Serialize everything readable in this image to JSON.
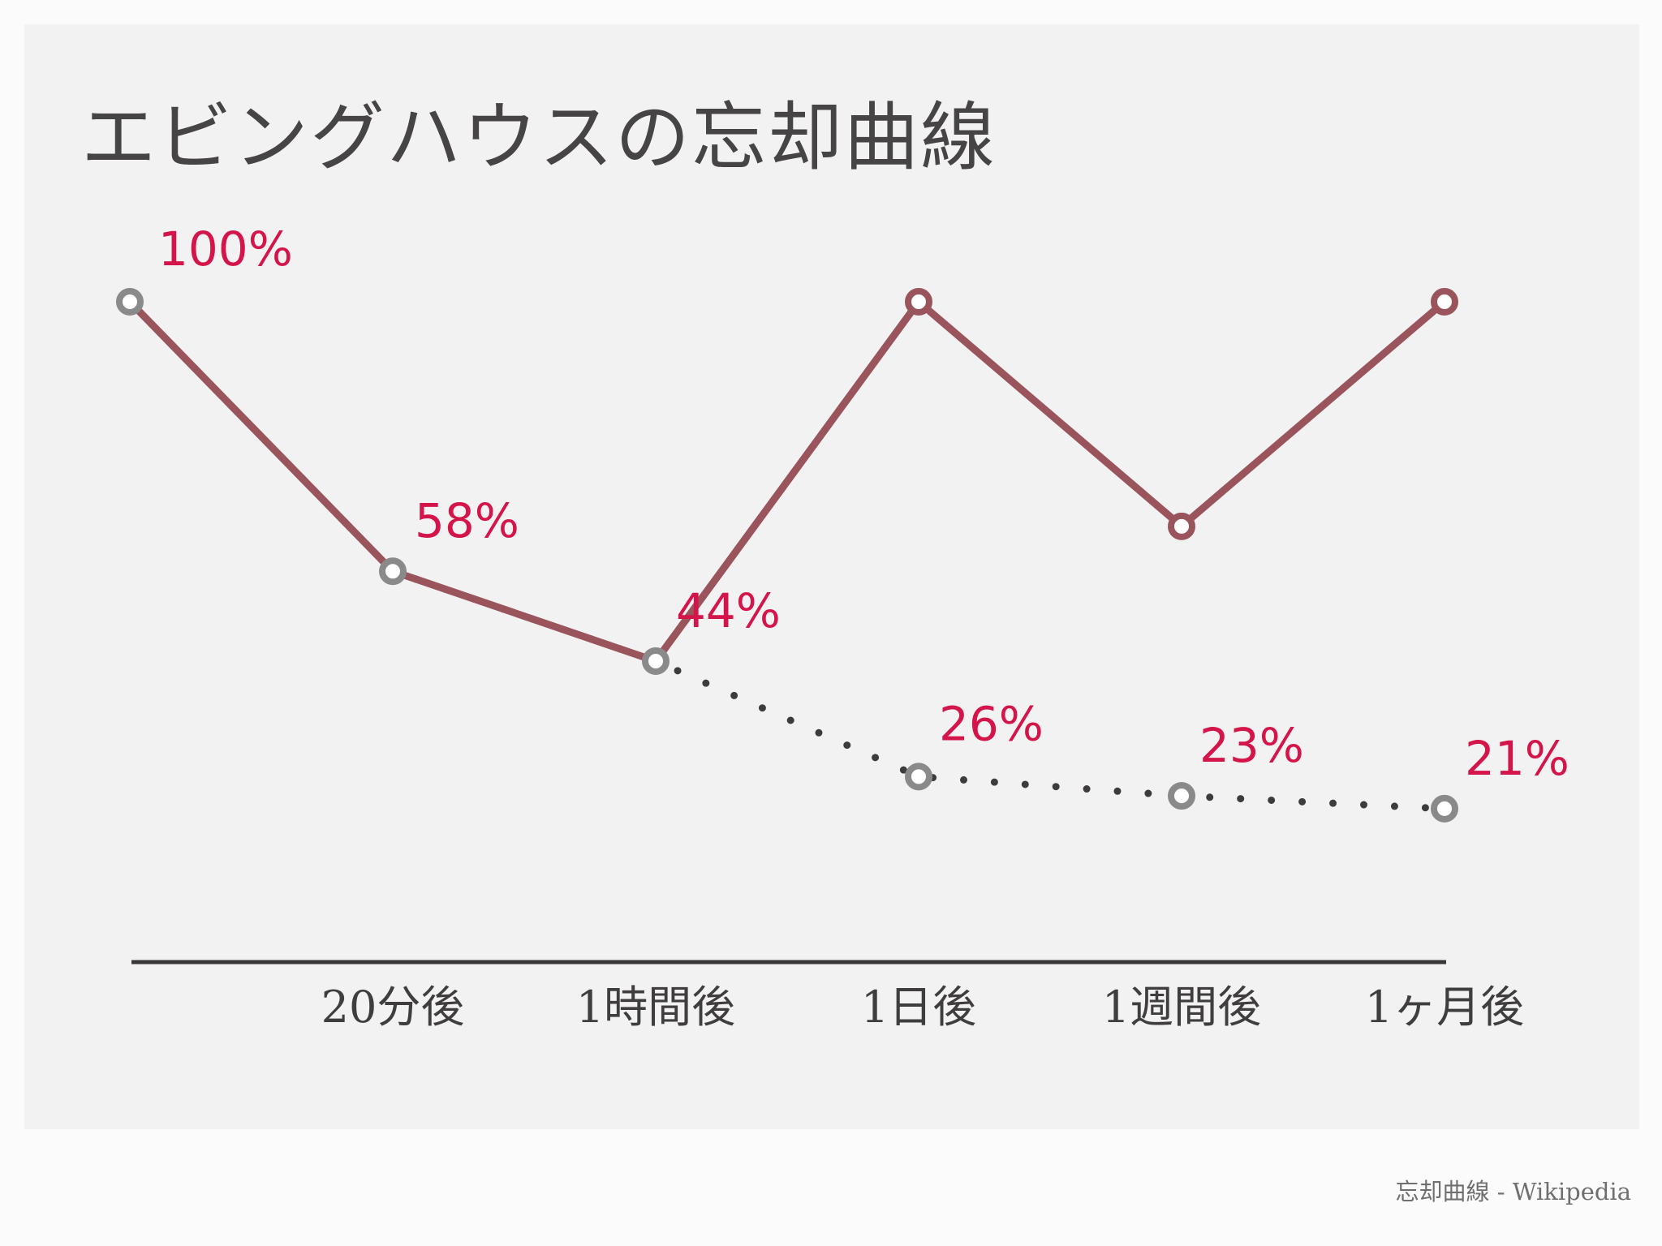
{
  "chart_data": {
    "type": "line",
    "title": "エビングハウスの忘却曲線",
    "xlabel": "",
    "ylabel": "",
    "categories": [
      "",
      "20分後",
      "1時間後",
      "1日後",
      "1週間後",
      "1ヶ月後"
    ],
    "ylim": [
      0,
      100
    ],
    "grid": false,
    "series": [
      {
        "values": [
          100,
          58,
          44,
          100,
          65,
          100
        ],
        "color": "#9a555c",
        "style": "solid",
        "marker": "hollow-circle"
      },
      {
        "values": [
          100,
          58,
          44,
          26,
          23,
          21
        ],
        "color": "#3e3b3d",
        "style": "dotted",
        "marker": "hollow-circle",
        "marker_color": "#8a8a8a",
        "data_labels": [
          "100%",
          "58%",
          "44%",
          "26%",
          "23%",
          "21%"
        ]
      }
    ],
    "label_color": "#d4154a"
  },
  "source": "忘却曲線 - Wikipedia"
}
